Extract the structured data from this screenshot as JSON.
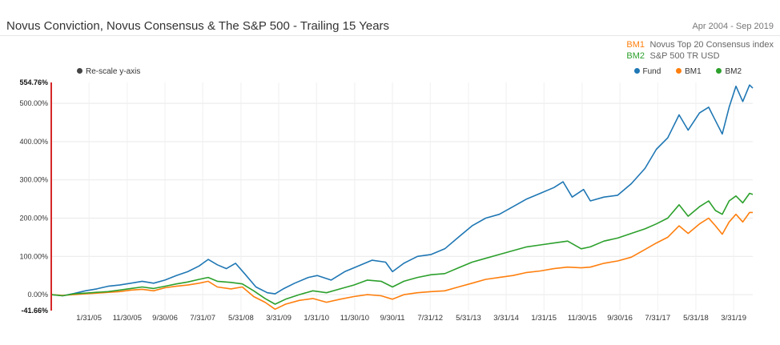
{
  "header": {
    "title": "Novus Conviction, Novus Consensus & The S&P 500 - Trailing 15 Years",
    "date_range": "Apr 2004 - Sep 2019"
  },
  "benchmarks": [
    {
      "tag": "BM1",
      "description": "Novus Top 20 Consensus index",
      "color": "#ff7f0e"
    },
    {
      "tag": "BM2",
      "description": "S&P 500 TR USD",
      "color": "#2ca02c"
    }
  ],
  "controls": {
    "rescale_label": "Re-scale y-axis"
  },
  "legend": [
    {
      "label": "Fund",
      "color": "#1f77b4"
    },
    {
      "label": "BM1",
      "color": "#ff7f0e"
    },
    {
      "label": "BM2",
      "color": "#2ca02c"
    }
  ],
  "chart_data": {
    "type": "line",
    "ylim": [
      -41.66,
      554.76
    ],
    "y_axis_edge_labels": [
      "554.76%",
      "-41.66%"
    ],
    "y_ticks": [
      0,
      100,
      200,
      300,
      400,
      500
    ],
    "y_tick_labels": [
      "0.00%",
      "100.00%",
      "200.00%",
      "300.00%",
      "400.00%",
      "500.00%"
    ],
    "x_range": [
      2004.25,
      2019.67
    ],
    "x_ticks": [
      {
        "label": "1/31/05",
        "x": 2005.08
      },
      {
        "label": "11/30/05",
        "x": 2005.92
      },
      {
        "label": "9/30/06",
        "x": 2006.75
      },
      {
        "label": "7/31/07",
        "x": 2007.58
      },
      {
        "label": "5/31/08",
        "x": 2008.42
      },
      {
        "label": "3/31/09",
        "x": 2009.25
      },
      {
        "label": "1/31/10",
        "x": 2010.08
      },
      {
        "label": "11/30/10",
        "x": 2010.92
      },
      {
        "label": "9/30/11",
        "x": 2011.75
      },
      {
        "label": "7/31/12",
        "x": 2012.58
      },
      {
        "label": "5/31/13",
        "x": 2013.42
      },
      {
        "label": "3/31/14",
        "x": 2014.25
      },
      {
        "label": "1/31/15",
        "x": 2015.08
      },
      {
        "label": "11/30/15",
        "x": 2015.92
      },
      {
        "label": "9/30/16",
        "x": 2016.75
      },
      {
        "label": "7/31/17",
        "x": 2017.58
      },
      {
        "label": "5/31/18",
        "x": 2018.42
      },
      {
        "label": "3/31/19",
        "x": 2019.25
      }
    ],
    "series": [
      {
        "name": "Fund",
        "color": "#1f77b4",
        "points": [
          [
            2004.25,
            0
          ],
          [
            2004.5,
            -3
          ],
          [
            2004.75,
            3
          ],
          [
            2005.0,
            10
          ],
          [
            2005.25,
            15
          ],
          [
            2005.5,
            22
          ],
          [
            2005.75,
            25
          ],
          [
            2006.0,
            30
          ],
          [
            2006.25,
            35
          ],
          [
            2006.5,
            30
          ],
          [
            2006.75,
            38
          ],
          [
            2007.0,
            50
          ],
          [
            2007.25,
            60
          ],
          [
            2007.5,
            75
          ],
          [
            2007.7,
            92
          ],
          [
            2007.9,
            78
          ],
          [
            2008.1,
            68
          ],
          [
            2008.3,
            82
          ],
          [
            2008.5,
            55
          ],
          [
            2008.75,
            20
          ],
          [
            2009.0,
            5
          ],
          [
            2009.17,
            2
          ],
          [
            2009.35,
            15
          ],
          [
            2009.6,
            30
          ],
          [
            2009.9,
            45
          ],
          [
            2010.1,
            50
          ],
          [
            2010.4,
            38
          ],
          [
            2010.7,
            60
          ],
          [
            2011.0,
            75
          ],
          [
            2011.3,
            90
          ],
          [
            2011.6,
            85
          ],
          [
            2011.75,
            60
          ],
          [
            2012.0,
            82
          ],
          [
            2012.3,
            100
          ],
          [
            2012.6,
            105
          ],
          [
            2012.9,
            120
          ],
          [
            2013.2,
            150
          ],
          [
            2013.5,
            180
          ],
          [
            2013.8,
            200
          ],
          [
            2014.1,
            210
          ],
          [
            2014.4,
            230
          ],
          [
            2014.7,
            250
          ],
          [
            2015.0,
            265
          ],
          [
            2015.3,
            280
          ],
          [
            2015.5,
            295
          ],
          [
            2015.7,
            255
          ],
          [
            2015.95,
            275
          ],
          [
            2016.1,
            245
          ],
          [
            2016.4,
            255
          ],
          [
            2016.7,
            260
          ],
          [
            2017.0,
            290
          ],
          [
            2017.3,
            330
          ],
          [
            2017.55,
            380
          ],
          [
            2017.8,
            410
          ],
          [
            2018.05,
            470
          ],
          [
            2018.25,
            430
          ],
          [
            2018.5,
            475
          ],
          [
            2018.7,
            490
          ],
          [
            2018.85,
            455
          ],
          [
            2019.0,
            420
          ],
          [
            2019.15,
            490
          ],
          [
            2019.3,
            545
          ],
          [
            2019.45,
            505
          ],
          [
            2019.6,
            548
          ],
          [
            2019.67,
            540
          ]
        ]
      },
      {
        "name": "BM1",
        "color": "#ff7f0e",
        "points": [
          [
            2004.25,
            0
          ],
          [
            2004.5,
            -2
          ],
          [
            2004.75,
            0
          ],
          [
            2005.0,
            2
          ],
          [
            2005.25,
            4
          ],
          [
            2005.5,
            6
          ],
          [
            2005.75,
            8
          ],
          [
            2006.0,
            12
          ],
          [
            2006.25,
            14
          ],
          [
            2006.5,
            10
          ],
          [
            2006.75,
            18
          ],
          [
            2007.0,
            22
          ],
          [
            2007.25,
            25
          ],
          [
            2007.5,
            30
          ],
          [
            2007.7,
            35
          ],
          [
            2007.9,
            20
          ],
          [
            2008.2,
            15
          ],
          [
            2008.45,
            20
          ],
          [
            2008.7,
            -5
          ],
          [
            2008.95,
            -20
          ],
          [
            2009.17,
            -38
          ],
          [
            2009.4,
            -25
          ],
          [
            2009.7,
            -15
          ],
          [
            2010.0,
            -10
          ],
          [
            2010.3,
            -20
          ],
          [
            2010.6,
            -12
          ],
          [
            2010.9,
            -5
          ],
          [
            2011.2,
            0
          ],
          [
            2011.5,
            -3
          ],
          [
            2011.75,
            -12
          ],
          [
            2012.0,
            0
          ],
          [
            2012.3,
            5
          ],
          [
            2012.6,
            8
          ],
          [
            2012.9,
            10
          ],
          [
            2013.2,
            20
          ],
          [
            2013.5,
            30
          ],
          [
            2013.8,
            40
          ],
          [
            2014.1,
            45
          ],
          [
            2014.4,
            50
          ],
          [
            2014.7,
            58
          ],
          [
            2015.0,
            62
          ],
          [
            2015.3,
            68
          ],
          [
            2015.6,
            72
          ],
          [
            2015.9,
            70
          ],
          [
            2016.1,
            72
          ],
          [
            2016.4,
            82
          ],
          [
            2016.7,
            88
          ],
          [
            2017.0,
            98
          ],
          [
            2017.3,
            118
          ],
          [
            2017.55,
            135
          ],
          [
            2017.8,
            150
          ],
          [
            2018.05,
            180
          ],
          [
            2018.25,
            160
          ],
          [
            2018.5,
            185
          ],
          [
            2018.7,
            200
          ],
          [
            2018.85,
            180
          ],
          [
            2019.0,
            158
          ],
          [
            2019.15,
            190
          ],
          [
            2019.3,
            210
          ],
          [
            2019.45,
            190
          ],
          [
            2019.6,
            215
          ],
          [
            2019.67,
            215
          ]
        ]
      },
      {
        "name": "BM2",
        "color": "#2ca02c",
        "points": [
          [
            2004.25,
            0
          ],
          [
            2004.5,
            -3
          ],
          [
            2004.75,
            2
          ],
          [
            2005.0,
            4
          ],
          [
            2005.25,
            6
          ],
          [
            2005.5,
            8
          ],
          [
            2005.75,
            12
          ],
          [
            2006.0,
            16
          ],
          [
            2006.25,
            20
          ],
          [
            2006.5,
            16
          ],
          [
            2006.75,
            22
          ],
          [
            2007.0,
            28
          ],
          [
            2007.25,
            33
          ],
          [
            2007.5,
            40
          ],
          [
            2007.7,
            45
          ],
          [
            2007.9,
            35
          ],
          [
            2008.2,
            32
          ],
          [
            2008.45,
            28
          ],
          [
            2008.7,
            10
          ],
          [
            2008.95,
            -10
          ],
          [
            2009.17,
            -25
          ],
          [
            2009.4,
            -12
          ],
          [
            2009.7,
            0
          ],
          [
            2010.0,
            10
          ],
          [
            2010.3,
            5
          ],
          [
            2010.6,
            15
          ],
          [
            2010.9,
            25
          ],
          [
            2011.2,
            38
          ],
          [
            2011.5,
            35
          ],
          [
            2011.75,
            20
          ],
          [
            2012.0,
            35
          ],
          [
            2012.3,
            45
          ],
          [
            2012.6,
            52
          ],
          [
            2012.9,
            55
          ],
          [
            2013.2,
            70
          ],
          [
            2013.5,
            85
          ],
          [
            2013.8,
            95
          ],
          [
            2014.1,
            105
          ],
          [
            2014.4,
            115
          ],
          [
            2014.7,
            125
          ],
          [
            2015.0,
            130
          ],
          [
            2015.3,
            135
          ],
          [
            2015.6,
            140
          ],
          [
            2015.9,
            120
          ],
          [
            2016.1,
            125
          ],
          [
            2016.4,
            140
          ],
          [
            2016.7,
            148
          ],
          [
            2017.0,
            160
          ],
          [
            2017.3,
            172
          ],
          [
            2017.55,
            185
          ],
          [
            2017.8,
            200
          ],
          [
            2018.05,
            235
          ],
          [
            2018.25,
            205
          ],
          [
            2018.5,
            230
          ],
          [
            2018.7,
            245
          ],
          [
            2018.85,
            220
          ],
          [
            2019.0,
            210
          ],
          [
            2019.15,
            245
          ],
          [
            2019.3,
            258
          ],
          [
            2019.45,
            240
          ],
          [
            2019.6,
            265
          ],
          [
            2019.67,
            262
          ]
        ]
      }
    ]
  }
}
